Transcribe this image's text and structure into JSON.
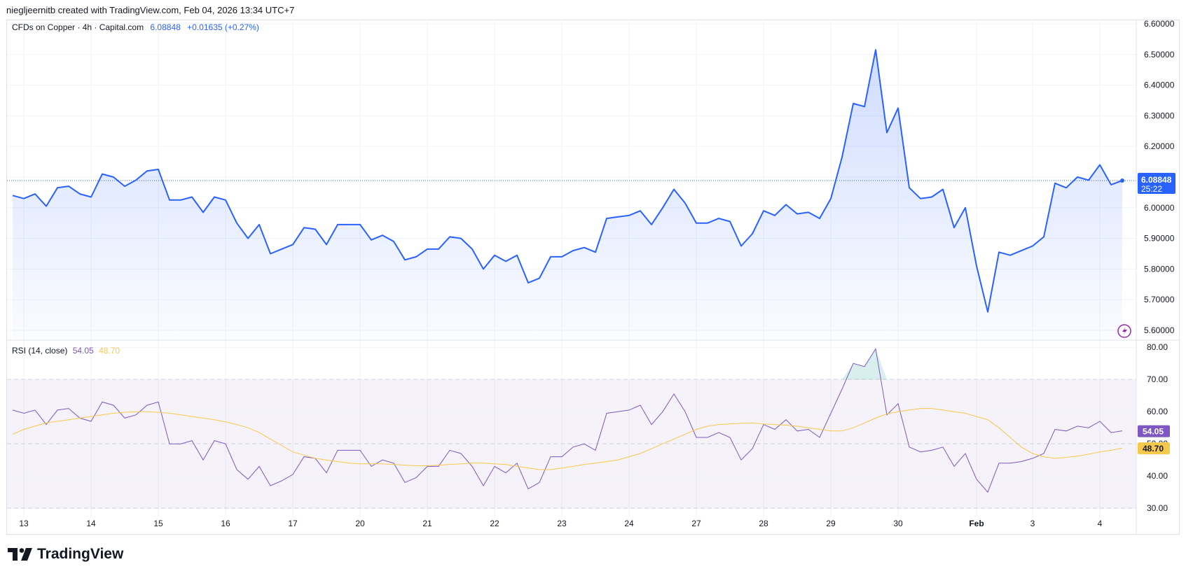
{
  "header": {
    "text": "niegljeernitb created with TradingView.com, Feb 04, 2026 13:34 UTC+7"
  },
  "legend": {
    "symbol": "CFDs on Copper · 4h · Capital.com",
    "price": "6.08848",
    "change": "+0.01635 (+0.27%)"
  },
  "rsi_legend": {
    "label": "RSI (14, close)",
    "value": "54.05",
    "ma": "48.70"
  },
  "price_badge": {
    "price": "6.08848",
    "countdown": "25:22"
  },
  "rsi_badges": {
    "rsi": "54.05",
    "ma": "48.70"
  },
  "footer": {
    "logo_text": "TradingView"
  },
  "colors": {
    "price_line": "#2962ff",
    "rsi_line": "#7e57c2",
    "rsi_ma": "#f7c94b",
    "grid": "#f0f3fa",
    "axis_text": "#131722",
    "badge_price": "#2962ff",
    "badge_rsi": "#7e57c2",
    "badge_ma": "#f7c94b"
  },
  "chart_data": [
    {
      "type": "area",
      "title": "CFDs on Copper · 4h · Capital.com",
      "series": [
        {
          "name": "",
          "values": [
            6.04,
            6.03,
            6.045,
            6.005,
            6.065,
            6.07,
            6.045,
            6.035,
            6.11,
            6.1,
            6.07,
            6.09,
            6.12,
            6.125,
            6.025,
            6.025,
            6.035,
            5.985,
            6.035,
            6.025,
            5.95,
            5.9,
            5.945,
            5.85,
            5.865,
            5.88,
            5.935,
            5.93,
            5.88,
            5.945,
            5.945,
            5.945,
            5.895,
            5.91,
            5.89,
            5.83,
            5.84,
            5.865,
            5.865,
            5.905,
            5.9,
            5.865,
            5.8,
            5.845,
            5.825,
            5.845,
            5.755,
            5.77,
            5.84,
            5.84,
            5.86,
            5.87,
            5.855,
            5.965,
            5.97,
            5.975,
            5.99,
            5.945,
            6.0,
            6.06,
            6.015,
            5.95,
            5.95,
            5.965,
            5.955,
            5.875,
            5.915,
            5.99,
            5.975,
            6.01,
            5.98,
            5.985,
            5.965,
            6.03,
            6.165,
            6.34,
            6.33,
            6.515,
            6.245,
            6.325,
            6.065,
            6.03,
            6.035,
            6.06,
            5.935,
            6.0,
            5.81,
            5.66,
            5.855,
            5.845,
            5.86,
            5.875,
            5.905,
            6.08,
            6.065,
            6.1,
            6.09,
            6.14,
            6.075,
            6.0885
          ]
        }
      ],
      "ylim": [
        5.6,
        6.6
      ],
      "yticks": [
        "6.60000",
        "6.50000",
        "6.40000",
        "6.30000",
        "6.20000",
        "6.10000",
        "6.00000",
        "5.90000",
        "5.80000",
        "5.70000",
        "5.60000"
      ],
      "last_price": 6.08848
    },
    {
      "type": "line",
      "title": "RSI (14, close)",
      "series": [
        {
          "name": "",
          "values": [
            60.5,
            59.5,
            60.5,
            56,
            60.5,
            61,
            58,
            57,
            63,
            62,
            58,
            59,
            62,
            63,
            50,
            50,
            51,
            45,
            51,
            50,
            42,
            39,
            43,
            37,
            38.5,
            40.5,
            46,
            45.5,
            41,
            48,
            48,
            48,
            43,
            45,
            44,
            38,
            39.5,
            43,
            43,
            48,
            47,
            43,
            37,
            43,
            41,
            44,
            36,
            38,
            46,
            46,
            49,
            50,
            48,
            59.5,
            60,
            60.5,
            62,
            56,
            60,
            65.5,
            60,
            52,
            52,
            53.5,
            52,
            45,
            48.5,
            56,
            54.5,
            57.5,
            54,
            54.5,
            52,
            59.5,
            67,
            75,
            74,
            79.5,
            59,
            62.5,
            49,
            47.5,
            48,
            49,
            43,
            47,
            39,
            35,
            44,
            44,
            44.5,
            45.5,
            47,
            54.5,
            54,
            55.5,
            55,
            57,
            53.5,
            54.05
          ]
        },
        {
          "name": "",
          "values": [
            53,
            54.5,
            55.5,
            56.5,
            57,
            57.5,
            58,
            58.5,
            59,
            59.5,
            59.8,
            60,
            60,
            59.8,
            59.5,
            59,
            58.5,
            58,
            57.5,
            56.8,
            56,
            55,
            53.5,
            51.5,
            49.5,
            47.5,
            46.5,
            45.5,
            45,
            44.5,
            44,
            43.8,
            43.8,
            43.8,
            43.6,
            43.4,
            43.2,
            43.2,
            43.4,
            43.6,
            43.8,
            44,
            44,
            43.8,
            43.6,
            43,
            42.5,
            42,
            42,
            42.5,
            43,
            43.6,
            44,
            44.5,
            45,
            46,
            47,
            48.5,
            50,
            51.5,
            53,
            54.5,
            55.5,
            56,
            56.2,
            56.4,
            56.5,
            56.2,
            56,
            55.8,
            55.5,
            55,
            54.5,
            54,
            54,
            55,
            56.5,
            58,
            59.3,
            60,
            60.5,
            61,
            61,
            60.5,
            60,
            59.5,
            58.5,
            57.5,
            55,
            52,
            49,
            47,
            46,
            45.5,
            45.8,
            46.2,
            46.8,
            47.5,
            48,
            48.7
          ]
        }
      ],
      "ylim": [
        27,
        82
      ],
      "yticks": [
        "80.00",
        "70.00",
        "60.00",
        "50.00",
        "40.00",
        "30.00"
      ],
      "bands": {
        "upper": 70,
        "middle": 50,
        "lower": 30
      }
    }
  ],
  "x_axis": {
    "ticks": [
      {
        "label": "13",
        "index": 1,
        "bold": false
      },
      {
        "label": "14",
        "index": 7,
        "bold": false
      },
      {
        "label": "15",
        "index": 13,
        "bold": false
      },
      {
        "label": "16",
        "index": 19,
        "bold": false
      },
      {
        "label": "17",
        "index": 25,
        "bold": false
      },
      {
        "label": "20",
        "index": 31,
        "bold": false
      },
      {
        "label": "21",
        "index": 37,
        "bold": false
      },
      {
        "label": "22",
        "index": 43,
        "bold": false
      },
      {
        "label": "23",
        "index": 49,
        "bold": false
      },
      {
        "label": "24",
        "index": 55,
        "bold": false
      },
      {
        "label": "27",
        "index": 61,
        "bold": false
      },
      {
        "label": "28",
        "index": 67,
        "bold": false
      },
      {
        "label": "29",
        "index": 73,
        "bold": false
      },
      {
        "label": "30",
        "index": 79,
        "bold": false
      },
      {
        "label": "Feb",
        "index": 86,
        "bold": true
      },
      {
        "label": "3",
        "index": 91,
        "bold": false
      },
      {
        "label": "4",
        "index": 97,
        "bold": false
      }
    ]
  }
}
